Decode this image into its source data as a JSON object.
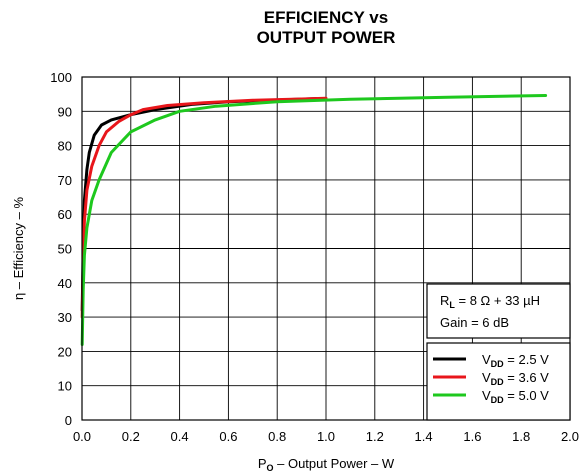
{
  "chart_data": {
    "type": "line",
    "title_lines": [
      "EFFICIENCY vs",
      "OUTPUT POWER"
    ],
    "xlabel": {
      "prefix": "P",
      "sub": "O",
      "suffix": " – Output Power – W"
    },
    "ylabel": "η – Efficiency – %",
    "xlim": [
      0,
      2.0
    ],
    "ylim": [
      0,
      100
    ],
    "xticks": [
      "0.0",
      "0.2",
      "0.4",
      "0.6",
      "0.8",
      "1.0",
      "1.2",
      "1.4",
      "1.6",
      "1.8",
      "2.0"
    ],
    "yticks": [
      "0",
      "10",
      "20",
      "30",
      "40",
      "50",
      "60",
      "70",
      "80",
      "90",
      "100"
    ],
    "grid": true,
    "condition_box": {
      "line1": {
        "prefix": "R",
        "sub": "L",
        "suffix": " = 8 Ω + 33 µH"
      },
      "line2": "Gain = 6 dB"
    },
    "legend_position": "bottom-right",
    "series": [
      {
        "name": {
          "prefix": "V",
          "sub": "DD",
          "suffix": " = 2.5 V"
        },
        "color": "#000000",
        "x": [
          0.001,
          0.005,
          0.01,
          0.02,
          0.03,
          0.05,
          0.08,
          0.12,
          0.2,
          0.3,
          0.45,
          0.6,
          0.8,
          0.96
        ],
        "y": [
          32,
          50,
          64,
          73,
          78,
          83,
          86,
          87.5,
          89,
          90.5,
          92,
          92.8,
          93.3,
          93.7
        ]
      },
      {
        "name": {
          "prefix": "V",
          "sub": "DD",
          "suffix": " = 3.6 V"
        },
        "color": "#e8161b",
        "x": [
          0.001,
          0.005,
          0.01,
          0.02,
          0.04,
          0.07,
          0.1,
          0.15,
          0.2,
          0.25,
          0.35,
          0.5,
          0.7,
          0.9,
          1.0
        ],
        "y": [
          30,
          47,
          58,
          67,
          74,
          80,
          84,
          87,
          89,
          90.5,
          91.7,
          92.5,
          93.2,
          93.6,
          93.8
        ]
      },
      {
        "name": {
          "prefix": "V",
          "sub": "DD",
          "suffix": " = 5.0 V"
        },
        "color": "#1ec81e",
        "x": [
          0.001,
          0.005,
          0.01,
          0.02,
          0.04,
          0.07,
          0.12,
          0.2,
          0.3,
          0.4,
          0.55,
          0.8,
          1.1,
          1.5,
          1.9
        ],
        "y": [
          22,
          38,
          48,
          56,
          64,
          70,
          78,
          84,
          87.5,
          90,
          91.5,
          92.8,
          93.5,
          94.1,
          94.6
        ]
      }
    ]
  }
}
